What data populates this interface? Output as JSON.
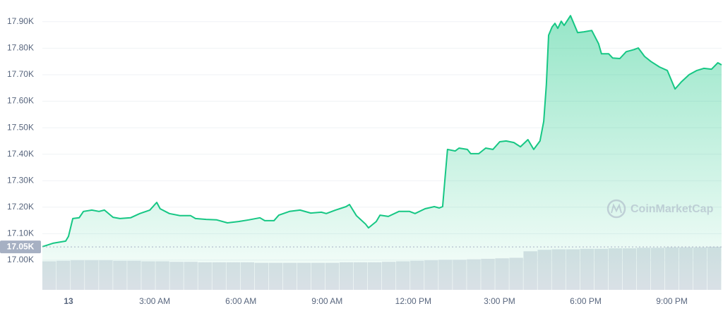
{
  "chart_data": {
    "type": "area",
    "watermark": "CoinMarketCap",
    "xlim": [
      -0.91,
      22.73
    ],
    "xticks": [
      {
        "value": 0,
        "label": "13"
      },
      {
        "value": 3,
        "label": "3:00 AM"
      },
      {
        "value": 6,
        "label": "6:00 AM"
      },
      {
        "value": 9,
        "label": "9:00 AM"
      },
      {
        "value": 12,
        "label": "12:00 PM"
      },
      {
        "value": 15,
        "label": "3:00 PM"
      },
      {
        "value": 18,
        "label": "6:00 PM"
      },
      {
        "value": 21,
        "label": "9:00 PM"
      }
    ],
    "ylim": [
      16888,
      17982
    ],
    "yticks": [
      {
        "value": 17000,
        "label": "17.00K"
      },
      {
        "value": 17100,
        "label": "17.10K"
      },
      {
        "value": 17200,
        "label": "17.20K"
      },
      {
        "value": 17300,
        "label": "17.30K"
      },
      {
        "value": 17400,
        "label": "17.40K"
      },
      {
        "value": 17500,
        "label": "17.50K"
      },
      {
        "value": 17600,
        "label": "17.60K"
      },
      {
        "value": 17700,
        "label": "17.70K"
      },
      {
        "value": 17800,
        "label": "17.80K"
      },
      {
        "value": 17900,
        "label": "17.90K"
      }
    ],
    "grid": true,
    "reference": {
      "value": 17050,
      "label": "17.05K"
    },
    "x": [
      -0.91,
      -0.54,
      -0.1,
      0,
      0.15,
      0.37,
      0.52,
      0.81,
      1.06,
      1.25,
      1.55,
      1.79,
      2.16,
      2.48,
      2.83,
      3.07,
      3.19,
      3.51,
      3.88,
      4.25,
      4.42,
      4.79,
      5.16,
      5.53,
      5.92,
      6.27,
      6.66,
      6.83,
      7.15,
      7.32,
      7.69,
      8.06,
      8.43,
      8.8,
      8.97,
      9.29,
      9.66,
      9.78,
      10.02,
      10.34,
      10.44,
      10.71,
      10.84,
      11.13,
      11.5,
      11.87,
      12.06,
      12.41,
      12.73,
      12.9,
      13.02,
      13.1,
      13.19,
      13.46,
      13.59,
      13.88,
      14.0,
      14.28,
      14.52,
      14.77,
      15.01,
      15.23,
      15.5,
      15.73,
      15.99,
      16.19,
      16.41,
      16.54,
      16.63,
      16.71,
      16.83,
      16.93,
      17.03,
      17.15,
      17.25,
      17.47,
      17.72,
      17.94,
      18.21,
      18.45,
      18.55,
      18.8,
      18.94,
      19.19,
      19.41,
      19.68,
      19.83,
      20.05,
      20.27,
      20.57,
      20.84,
      21.11,
      21.33,
      21.6,
      21.87,
      22.11,
      22.38,
      22.6,
      22.73
    ],
    "series": [
      {
        "color": "#16c784",
        "values": [
          17051,
          17064,
          17072,
          17090,
          17157,
          17160,
          17184,
          17189,
          17184,
          17189,
          17162,
          17157,
          17160,
          17176,
          17189,
          17218,
          17194,
          17176,
          17168,
          17168,
          17157,
          17154,
          17152,
          17141,
          17146,
          17152,
          17160,
          17149,
          17149,
          17170,
          17184,
          17189,
          17178,
          17181,
          17176,
          17189,
          17202,
          17210,
          17168,
          17136,
          17122,
          17146,
          17170,
          17165,
          17184,
          17184,
          17176,
          17194,
          17202,
          17197,
          17202,
          17303,
          17418,
          17412,
          17423,
          17418,
          17402,
          17402,
          17423,
          17418,
          17447,
          17450,
          17444,
          17428,
          17455,
          17418,
          17450,
          17524,
          17662,
          17849,
          17880,
          17894,
          17875,
          17902,
          17886,
          17923,
          17859,
          17862,
          17867,
          17817,
          17779,
          17779,
          17763,
          17761,
          17787,
          17795,
          17801,
          17769,
          17750,
          17729,
          17716,
          17646,
          17673,
          17700,
          17716,
          17724,
          17721,
          17745,
          17737
        ]
      }
    ],
    "volume": {
      "color": "#dde1e8",
      "axis": "y2",
      "values": [
        57,
        58,
        59,
        59,
        59,
        58,
        58,
        57,
        57,
        56,
        56,
        55,
        55,
        55,
        55,
        54,
        54,
        54,
        54,
        54,
        54,
        55,
        55,
        55,
        56,
        57,
        58,
        59,
        60,
        60,
        61,
        62,
        63,
        64,
        77,
        80,
        81,
        81,
        82,
        82,
        83,
        83,
        84,
        84,
        85,
        85,
        85,
        86
      ]
    },
    "y2lim": [
      0,
      100
    ]
  }
}
